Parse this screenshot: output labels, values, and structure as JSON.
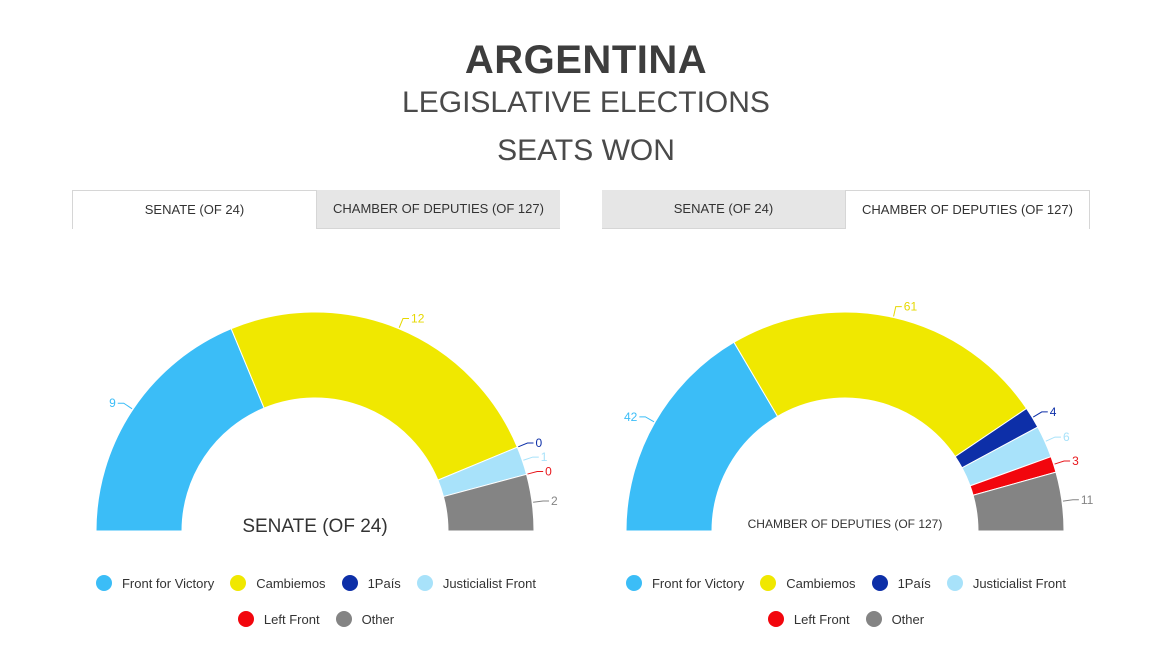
{
  "header": {
    "title": "ARGENTINA",
    "subtitle": "LEGISLATIVE ELECTIONS",
    "subtitle2": "SEATS WON"
  },
  "panels": [
    {
      "tabs": [
        {
          "label": "SENATE (OF 24)",
          "active": true
        },
        {
          "label": "CHAMBER OF DEPUTIES (OF 127)",
          "active": false
        }
      ],
      "center_label": "SENATE (OF 24)"
    },
    {
      "tabs": [
        {
          "label": "SENATE (OF 24)",
          "active": false
        },
        {
          "label": "CHAMBER OF DEPUTIES (OF 127)",
          "active": true
        }
      ],
      "center_label": "CHAMBER OF DEPUTIES (OF 127)"
    }
  ],
  "legend": [
    {
      "label": "Front for Victory",
      "color": "#3bbdf7"
    },
    {
      "label": "Cambiemos",
      "color": "#f0e800"
    },
    {
      "label": "1País",
      "color": "#0d2fa8"
    },
    {
      "label": "Justicialist Front",
      "color": "#a8e2fa"
    },
    {
      "label": "Left Front",
      "color": "#f2060d"
    },
    {
      "label": "Other",
      "color": "#848484"
    }
  ],
  "chart_data": [
    {
      "type": "pie",
      "subtype": "semi-donut",
      "title": "SENATE (OF 24)",
      "categories": [
        "Front for Victory",
        "Cambiemos",
        "1País",
        "Justicialist Front",
        "Left Front",
        "Other"
      ],
      "values": [
        9,
        12,
        0,
        1,
        0,
        2
      ],
      "total": 24,
      "colors": [
        "#3bbdf7",
        "#f0e800",
        "#0d2fa8",
        "#a8e2fa",
        "#f2060d",
        "#848484"
      ],
      "label_colors": [
        "#3bbdf7",
        "#e6d800",
        "#0d2fa8",
        "#a8e2fa",
        "#e8161b",
        "#848484"
      ],
      "legend_position": "bottom"
    },
    {
      "type": "pie",
      "subtype": "semi-donut",
      "title": "CHAMBER OF DEPUTIES (OF 127)",
      "categories": [
        "Front for Victory",
        "Cambiemos",
        "1País",
        "Justicialist Front",
        "Left Front",
        "Other"
      ],
      "values": [
        42,
        61,
        4,
        6,
        3,
        11
      ],
      "total": 127,
      "colors": [
        "#3bbdf7",
        "#f0e800",
        "#0d2fa8",
        "#a8e2fa",
        "#f2060d",
        "#848484"
      ],
      "label_colors": [
        "#3bbdf7",
        "#e6d800",
        "#0d2fa8",
        "#a8e2fa",
        "#e8161b",
        "#848484"
      ],
      "legend_position": "bottom"
    }
  ]
}
